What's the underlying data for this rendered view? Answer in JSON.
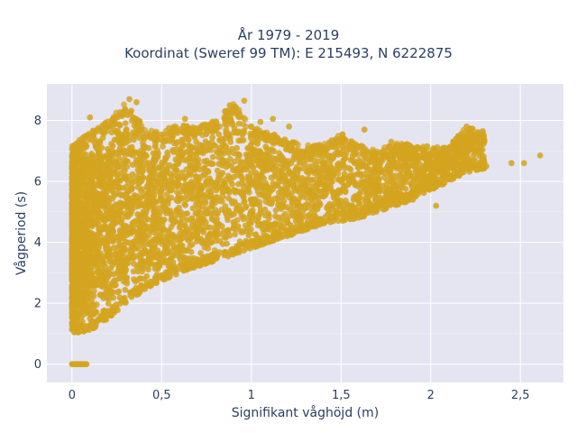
{
  "chart_data": {
    "type": "scatter",
    "title_lines": [
      "År 1979 - 2019",
      "Koordinat (Sweref 99 TM): E 215493, N 6222875"
    ],
    "xlabel": "Signifikant våghöjd (m)",
    "ylabel": "Vågperiod (s)",
    "xlim": [
      -0.14,
      2.74
    ],
    "ylim": [
      -0.6,
      9.2
    ],
    "xticks": [
      0,
      0.5,
      1,
      1.5,
      2,
      2.5
    ],
    "xtick_labels": [
      "0",
      "0,5",
      "1",
      "1,5",
      "2",
      "2,5"
    ],
    "yticks": [
      0,
      2,
      4,
      6,
      8
    ],
    "ytick_labels": [
      "0",
      "2",
      "4",
      "6",
      "8"
    ],
    "grid": true,
    "legend": "none",
    "marker_color": "#D4A420",
    "plot_bg": "#E5E5F2",
    "envelope": [
      {
        "x": 0.0,
        "y_min": 1.0,
        "y_max": 7.2
      },
      {
        "x": 0.1,
        "y_min": 1.1,
        "y_max": 7.6
      },
      {
        "x": 0.2,
        "y_min": 1.5,
        "y_max": 8.0
      },
      {
        "x": 0.3,
        "y_min": 2.0,
        "y_max": 8.6
      },
      {
        "x": 0.4,
        "y_min": 2.4,
        "y_max": 7.8
      },
      {
        "x": 0.5,
        "y_min": 2.7,
        "y_max": 7.6
      },
      {
        "x": 0.6,
        "y_min": 3.0,
        "y_max": 7.9
      },
      {
        "x": 0.7,
        "y_min": 3.2,
        "y_max": 7.8
      },
      {
        "x": 0.8,
        "y_min": 3.4,
        "y_max": 8.0
      },
      {
        "x": 0.9,
        "y_min": 3.6,
        "y_max": 8.6
      },
      {
        "x": 1.0,
        "y_min": 3.8,
        "y_max": 7.8
      },
      {
        "x": 1.1,
        "y_min": 4.0,
        "y_max": 7.6
      },
      {
        "x": 1.2,
        "y_min": 4.2,
        "y_max": 7.4
      },
      {
        "x": 1.3,
        "y_min": 4.4,
        "y_max": 7.2
      },
      {
        "x": 1.4,
        "y_min": 4.6,
        "y_max": 7.2
      },
      {
        "x": 1.5,
        "y_min": 4.7,
        "y_max": 7.6
      },
      {
        "x": 1.6,
        "y_min": 4.8,
        "y_max": 7.2
      },
      {
        "x": 1.7,
        "y_min": 5.0,
        "y_max": 7.0
      },
      {
        "x": 1.8,
        "y_min": 5.2,
        "y_max": 7.3
      },
      {
        "x": 1.9,
        "y_min": 5.4,
        "y_max": 7.2
      },
      {
        "x": 2.0,
        "y_min": 5.7,
        "y_max": 7.1
      },
      {
        "x": 2.1,
        "y_min": 6.0,
        "y_max": 7.2
      },
      {
        "x": 2.2,
        "y_min": 6.3,
        "y_max": 7.8
      },
      {
        "x": 2.3,
        "y_min": 6.4,
        "y_max": 7.6
      }
    ],
    "zero_points": [
      {
        "x": 0.0,
        "y": 0
      },
      {
        "x": 0.01,
        "y": 0
      },
      {
        "x": 0.02,
        "y": 0
      },
      {
        "x": 0.03,
        "y": 0
      },
      {
        "x": 0.04,
        "y": 0
      },
      {
        "x": 0.05,
        "y": 0
      },
      {
        "x": 0.06,
        "y": 0
      },
      {
        "x": 0.07,
        "y": 0
      },
      {
        "x": 0.08,
        "y": 0
      }
    ],
    "outliers": [
      {
        "x": 0.32,
        "y": 8.7
      },
      {
        "x": 0.36,
        "y": 8.6
      },
      {
        "x": 0.96,
        "y": 8.65
      },
      {
        "x": 0.88,
        "y": 8.5
      },
      {
        "x": 0.1,
        "y": 8.1
      },
      {
        "x": 0.23,
        "y": 8.05
      },
      {
        "x": 0.63,
        "y": 8.05
      },
      {
        "x": 0.85,
        "y": 8.05
      },
      {
        "x": 1.12,
        "y": 8.05
      },
      {
        "x": 0.54,
        "y": 7.75
      },
      {
        "x": 0.72,
        "y": 7.8
      },
      {
        "x": 1.05,
        "y": 7.95
      },
      {
        "x": 1.21,
        "y": 7.8
      },
      {
        "x": 1.63,
        "y": 7.7
      },
      {
        "x": 2.2,
        "y": 7.8
      },
      {
        "x": 2.29,
        "y": 7.65
      },
      {
        "x": 2.21,
        "y": 7.3
      },
      {
        "x": 1.78,
        "y": 7.3
      },
      {
        "x": 1.48,
        "y": 7.35
      },
      {
        "x": 1.38,
        "y": 7.2
      },
      {
        "x": 1.98,
        "y": 7.15
      },
      {
        "x": 2.08,
        "y": 7.1
      },
      {
        "x": 2.45,
        "y": 6.6
      },
      {
        "x": 2.52,
        "y": 6.6
      },
      {
        "x": 2.61,
        "y": 6.85
      },
      {
        "x": 2.31,
        "y": 6.5
      },
      {
        "x": 2.02,
        "y": 5.8
      },
      {
        "x": 2.03,
        "y": 5.2
      },
      {
        "x": 1.9,
        "y": 5.4
      }
    ]
  }
}
